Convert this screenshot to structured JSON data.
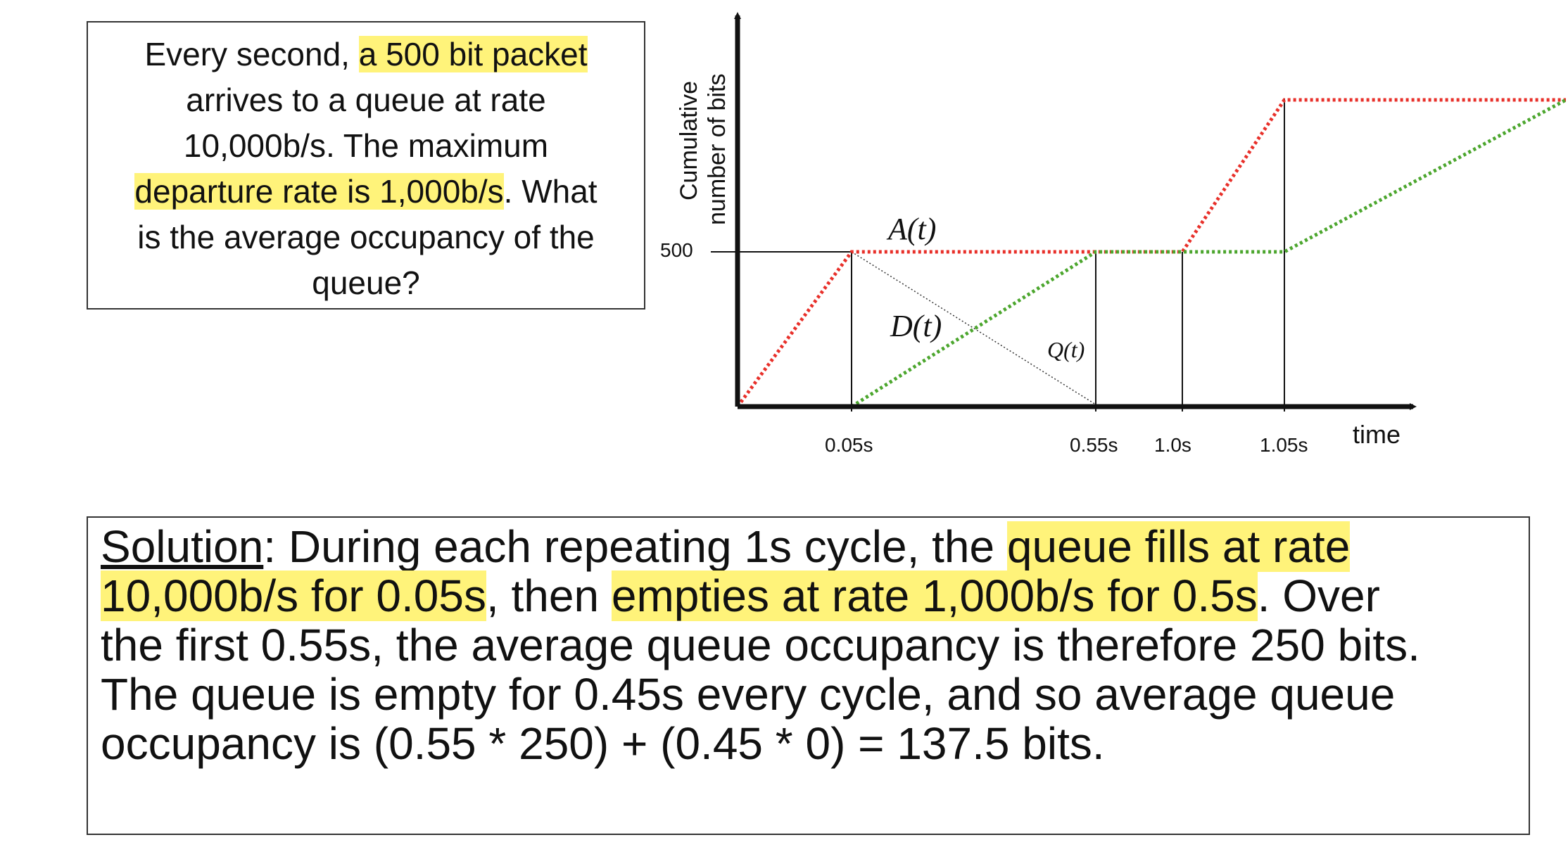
{
  "problem": {
    "line1_pre": "Every second, ",
    "line1_hl": "a 500 bit packet",
    "line2": "arrives to a queue at rate",
    "line3": "10,000b/s. The maximum",
    "line4_hl": "departure rate is 1,000b/s",
    "line4_post": ". What",
    "line5": "is the average occupancy of the",
    "line6": "queue?"
  },
  "diagram": {
    "y_axis_title_1": "Cumulative",
    "y_axis_title_2": "number of bits",
    "y_tick": "500",
    "x_ticks": [
      "0.05s",
      "0.55s",
      "1.0s",
      "1.05s"
    ],
    "x_axis_title": "time",
    "label_arrival": "A(t)",
    "label_departure": "D(t)",
    "label_queue": "Q(t)",
    "colors": {
      "arrival": "#e8302a",
      "departure": "#4ca62e",
      "highlight": "#fff37a"
    }
  },
  "solution": {
    "label": "Solution",
    "l1_pre": ": During each repeating 1s cycle, the ",
    "l1_hl": "queue fills at rate",
    "l2_hl1": "10,000b/s for 0.05s",
    "l2_mid": ", then ",
    "l2_hl2": "empties at rate 1,000b/s for 0.5s",
    "l2_post": ". Over",
    "l3": "the first 0.55s, the average queue occupancy is therefore 250 bits.",
    "l4": "The queue is empty for 0.45s every cycle, and so average queue",
    "l5": "occupancy is (0.55 * 250) + (0.45 * 0) = 137.5 bits."
  }
}
